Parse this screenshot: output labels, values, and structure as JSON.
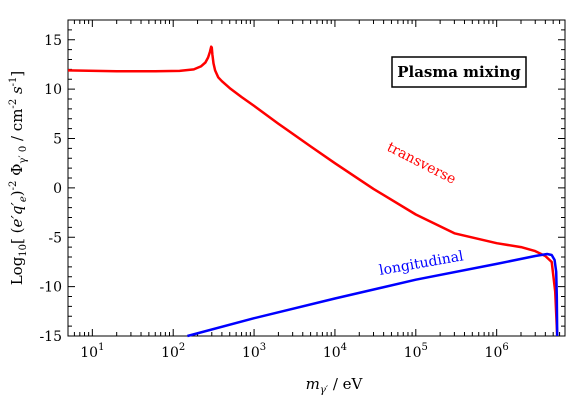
{
  "chart_data": {
    "type": "line",
    "title": "",
    "legend_box": "Plasma mixing",
    "xlabel": "m_{γ′} / eV",
    "ylabel": "Log10[ (e′q′e)^-2 Φγ′0 / cm^-2 s^-1 ]",
    "x_scale": "log",
    "xlim": [
      5,
      7000000
    ],
    "ylim": [
      -15,
      17
    ],
    "grid": false,
    "x_tick_labels": [
      {
        "value": 10,
        "mantissa": "10",
        "exp": "1"
      },
      {
        "value": 100,
        "mantissa": "10",
        "exp": "2"
      },
      {
        "value": 1000,
        "mantissa": "10",
        "exp": "3"
      },
      {
        "value": 10000,
        "mantissa": "10",
        "exp": "4"
      },
      {
        "value": 100000,
        "mantissa": "10",
        "exp": "5"
      },
      {
        "value": 1000000,
        "mantissa": "10",
        "exp": "6"
      }
    ],
    "y_ticks": [
      -15,
      -10,
      -5,
      0,
      5,
      10,
      15
    ],
    "series": [
      {
        "name": "transverse",
        "color": "#ff0000",
        "x": [
          5,
          20,
          60,
          120,
          180,
          220,
          250,
          270,
          285,
          295,
          300,
          305,
          315,
          330,
          360,
          400,
          500,
          700,
          1000,
          2000,
          5000,
          10000,
          30000,
          100000,
          300000,
          1000000,
          2000000,
          3000000,
          4000000,
          4800000,
          5300000,
          5600000
        ],
        "y": [
          11.9,
          11.8,
          11.8,
          11.85,
          12.0,
          12.3,
          12.7,
          13.2,
          13.8,
          14.3,
          14.2,
          13.5,
          12.6,
          11.9,
          11.2,
          10.8,
          10.1,
          9.2,
          8.3,
          6.5,
          4.2,
          2.5,
          -0.1,
          -2.7,
          -4.6,
          -5.6,
          -6.0,
          -6.4,
          -6.9,
          -7.5,
          -10.5,
          -15
        ]
      },
      {
        "name": "longitudinal",
        "color": "#0000ff",
        "x": [
          150,
          1000,
          10000,
          100000,
          1000000,
          3000000,
          4200000,
          4800000,
          5200000,
          5450000,
          5550000,
          5600000
        ],
        "y": [
          -15,
          -13.2,
          -11.2,
          -9.3,
          -7.7,
          -6.9,
          -6.7,
          -6.8,
          -7.3,
          -8.5,
          -11.0,
          -15
        ]
      }
    ]
  }
}
